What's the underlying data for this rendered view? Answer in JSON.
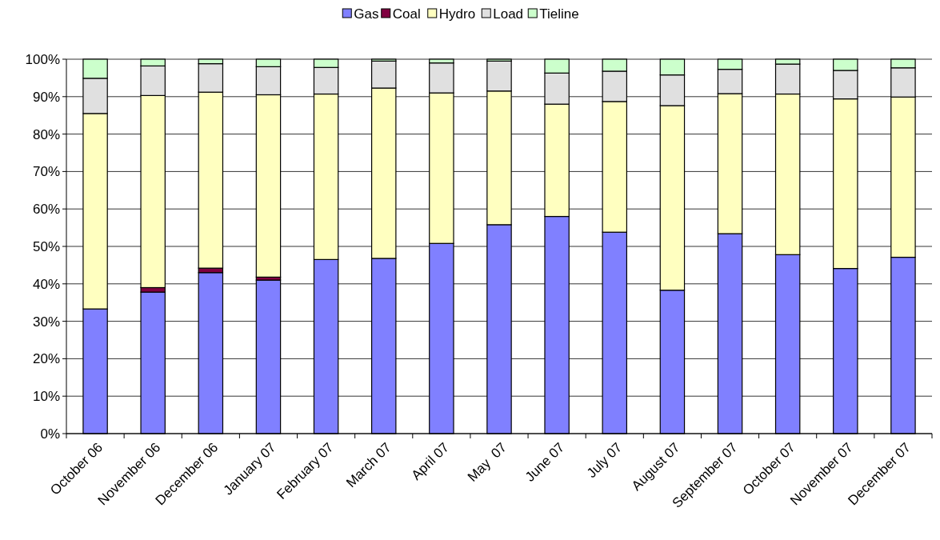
{
  "chart_data": {
    "type": "bar",
    "stacked": true,
    "categories": [
      "October 06",
      "November 06",
      "December 06",
      "January 07",
      "February 07",
      "March 07",
      "April 07",
      "May  07",
      "June 07",
      "July 07",
      "August 07",
      "September 07",
      "October 07",
      "November 07",
      "December 07"
    ],
    "series": [
      {
        "name": "Gas",
        "color": "#8080ff",
        "values": [
          33.3,
          37.8,
          43.0,
          41.0,
          46.5,
          46.8,
          50.8,
          55.8,
          58.0,
          53.8,
          38.3,
          53.4,
          47.8,
          44.1,
          47.1
        ]
      },
      {
        "name": "Coal",
        "color": "#800040",
        "values": [
          0,
          1.2,
          1.2,
          0.8,
          0,
          0,
          0,
          0,
          0,
          0,
          0,
          0,
          0,
          0,
          0
        ]
      },
      {
        "name": "Hydro",
        "color": "#ffffc0",
        "values": [
          52.2,
          51.3,
          47.0,
          48.7,
          44.2,
          45.5,
          40.2,
          35.7,
          30.0,
          34.9,
          49.3,
          37.4,
          42.9,
          45.3,
          42.8
        ]
      },
      {
        "name": "Load",
        "color": "#e0e0e0",
        "values": [
          9.4,
          7.9,
          7.6,
          7.5,
          7.1,
          7.2,
          8.0,
          8.0,
          8.3,
          8.1,
          8.2,
          6.5,
          8.0,
          7.6,
          7.8
        ]
      },
      {
        "name": "Tieline",
        "color": "#ccffcc",
        "values": [
          5.1,
          1.8,
          1.2,
          2.0,
          2.2,
          0.5,
          1.0,
          0.5,
          3.7,
          3.2,
          4.2,
          2.7,
          1.3,
          3.0,
          2.3
        ]
      }
    ],
    "ylim": [
      0,
      100
    ],
    "yticks": [
      {
        "value": 0,
        "label": "0%"
      },
      {
        "value": 10,
        "label": "10%"
      },
      {
        "value": 20,
        "label": "20%"
      },
      {
        "value": 30,
        "label": "30%"
      },
      {
        "value": 40,
        "label": "40%"
      },
      {
        "value": 50,
        "label": "50%"
      },
      {
        "value": 60,
        "label": "60%"
      },
      {
        "value": 70,
        "label": "70%"
      },
      {
        "value": 80,
        "label": "80%"
      },
      {
        "value": 90,
        "label": "90%"
      },
      {
        "value": 100,
        "label": "100%"
      }
    ],
    "grid": "y",
    "legend": "top"
  }
}
